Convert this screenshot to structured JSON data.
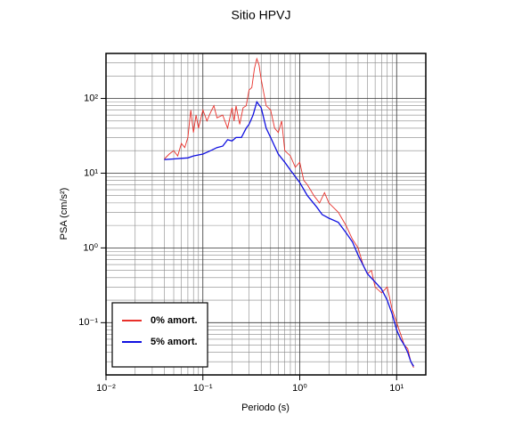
{
  "chart_data": {
    "type": "line",
    "title": "Sitio HPVJ",
    "x_label": "Periodo (s)",
    "y_label": "PSA (cm/s²)",
    "xscale": "log",
    "yscale": "log",
    "grid": true,
    "legend": "lower left",
    "xlim": [
      0.01,
      20
    ],
    "ylim": [
      0.02,
      400
    ],
    "xticks": [
      {
        "value": 0.01,
        "label": "10⁻²"
      },
      {
        "value": 0.1,
        "label": "10⁻¹"
      },
      {
        "value": 1,
        "label": "10⁰"
      },
      {
        "value": 10,
        "label": "10¹"
      }
    ],
    "yticks": [
      {
        "value": 0.1,
        "label": "10⁻¹"
      },
      {
        "value": 1,
        "label": "10⁰"
      },
      {
        "value": 10,
        "label": "10¹"
      },
      {
        "value": 100,
        "label": "10²"
      }
    ],
    "xminorticks": [
      0.02,
      0.03,
      0.04,
      0.05,
      0.06,
      0.07,
      0.08,
      0.09,
      0.2,
      0.3,
      0.4,
      0.5,
      0.6,
      0.7,
      0.8,
      0.9,
      2,
      3,
      4,
      5,
      6,
      7,
      8,
      9
    ],
    "yminorticks": [
      0.03,
      0.04,
      0.05,
      0.06,
      0.07,
      0.08,
      0.09,
      0.2,
      0.3,
      0.4,
      0.5,
      0.6,
      0.7,
      0.8,
      0.9,
      2,
      3,
      4,
      5,
      6,
      7,
      8,
      9,
      20,
      30,
      40,
      50,
      60,
      70,
      80,
      90,
      200,
      300
    ],
    "series": [
      {
        "name": "0% amort.",
        "color": "#e8302a",
        "x": [
          0.04,
          0.045,
          0.05,
          0.055,
          0.06,
          0.065,
          0.07,
          0.075,
          0.08,
          0.085,
          0.09,
          0.1,
          0.11,
          0.12,
          0.13,
          0.14,
          0.16,
          0.18,
          0.2,
          0.21,
          0.22,
          0.24,
          0.26,
          0.28,
          0.3,
          0.32,
          0.34,
          0.36,
          0.38,
          0.4,
          0.45,
          0.5,
          0.55,
          0.6,
          0.65,
          0.7,
          0.8,
          0.9,
          1.0,
          1.1,
          1.2,
          1.4,
          1.6,
          1.8,
          2,
          2.5,
          3,
          3.5,
          4,
          4.5,
          5,
          5.5,
          6,
          7,
          8,
          9,
          10,
          11,
          12,
          13,
          14,
          15
        ],
        "values": [
          15.5,
          18,
          20,
          17,
          25,
          22,
          30,
          70,
          35,
          60,
          40,
          70,
          50,
          65,
          80,
          55,
          60,
          40,
          75,
          50,
          80,
          45,
          75,
          80,
          130,
          140,
          250,
          340,
          280,
          180,
          80,
          70,
          40,
          35,
          50,
          20,
          17,
          12,
          14,
          8,
          7,
          5,
          4,
          5.5,
          4,
          3,
          2,
          1.3,
          1,
          0.6,
          0.45,
          0.5,
          0.3,
          0.25,
          0.3,
          0.15,
          0.1,
          0.07,
          0.05,
          0.045,
          0.03,
          0.025
        ]
      },
      {
        "name": "5% amort.",
        "color": "#1010e0",
        "x": [
          0.04,
          0.05,
          0.06,
          0.07,
          0.08,
          0.1,
          0.12,
          0.14,
          0.16,
          0.18,
          0.2,
          0.22,
          0.25,
          0.28,
          0.3,
          0.33,
          0.36,
          0.4,
          0.45,
          0.5,
          0.6,
          0.7,
          0.8,
          1.0,
          1.2,
          1.5,
          1.7,
          2,
          2.5,
          3,
          3.5,
          4,
          5,
          6,
          7,
          8,
          9,
          10,
          11,
          12,
          13,
          14,
          15
        ],
        "values": [
          15.2,
          15.5,
          15.8,
          16,
          17,
          18,
          20,
          22,
          23,
          28,
          27,
          30,
          30,
          40,
          45,
          60,
          90,
          75,
          40,
          30,
          18,
          14,
          11,
          7.5,
          5,
          3.5,
          2.8,
          2.5,
          2.2,
          1.6,
          1.2,
          0.8,
          0.45,
          0.35,
          0.28,
          0.2,
          0.13,
          0.08,
          0.06,
          0.05,
          0.04,
          0.03,
          0.026
        ]
      }
    ]
  }
}
